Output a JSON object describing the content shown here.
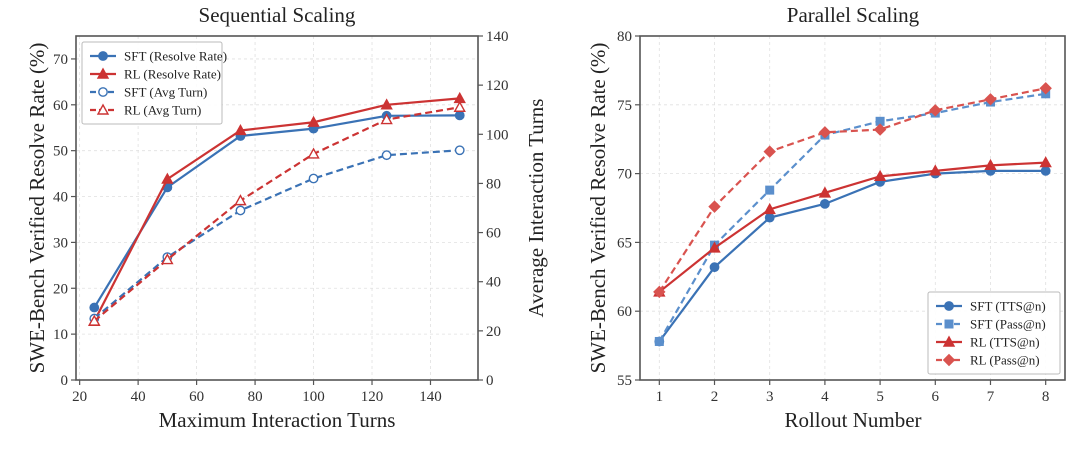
{
  "chart_data": [
    {
      "type": "line",
      "title": "Sequential Scaling",
      "xlabel": "Maximum Interaction Turns",
      "ylabel": "SWE-Bench Verified Resolve Rate (%)",
      "ylabel_right": "Average Interaction Turns",
      "x": [
        25,
        50,
        75,
        100,
        125,
        150
      ],
      "xlim": [
        18.75,
        156.25
      ],
      "ylim": [
        0,
        75
      ],
      "ylim_right": [
        0,
        140
      ],
      "xticks": [
        "20",
        "40",
        "60",
        "80",
        "100",
        "120",
        "140"
      ],
      "xtick_values": [
        20,
        40,
        60,
        80,
        100,
        120,
        140
      ],
      "yticks": [
        "0",
        "10",
        "20",
        "30",
        "40",
        "50",
        "60",
        "70"
      ],
      "ytick_values": [
        0,
        10,
        20,
        30,
        40,
        50,
        60,
        70
      ],
      "yticks_right": [
        "0",
        "20",
        "40",
        "60",
        "80",
        "100",
        "120",
        "140"
      ],
      "ytick_values_right": [
        0,
        20,
        40,
        60,
        80,
        100,
        120,
        140
      ],
      "grid": true,
      "legend_position": "top-left",
      "series": [
        {
          "name": "SFT (Resolve Rate)",
          "axis": "left",
          "color": "#3a72b5",
          "style": "solid",
          "marker": "circle-filled",
          "values": [
            15.8,
            42.0,
            53.2,
            54.8,
            57.6,
            57.7
          ]
        },
        {
          "name": "RL (Resolve Rate)",
          "axis": "left",
          "color": "#cc3333",
          "style": "solid",
          "marker": "triangle-filled",
          "values": [
            12.8,
            43.8,
            54.4,
            56.2,
            60.0,
            61.4
          ]
        },
        {
          "name": "SFT (Avg Turn)",
          "axis": "right",
          "color": "#3a72b5",
          "style": "dashed",
          "marker": "circle-open",
          "values": [
            25,
            50,
            69,
            82,
            91.5,
            93.5
          ]
        },
        {
          "name": "RL (Avg Turn)",
          "axis": "right",
          "color": "#cc3333",
          "style": "dashed",
          "marker": "triangle-open",
          "values": [
            24,
            49,
            73,
            92,
            106,
            111
          ]
        }
      ]
    },
    {
      "type": "line",
      "title": "Parallel Scaling",
      "xlabel": "Rollout Number",
      "ylabel": "SWE-Bench Verified Resolve Rate (%)",
      "x": [
        1,
        2,
        3,
        4,
        5,
        6,
        7,
        8
      ],
      "xlim": [
        0.65,
        8.35
      ],
      "ylim": [
        55,
        80
      ],
      "xticks": [
        "1",
        "2",
        "3",
        "4",
        "5",
        "6",
        "7",
        "8"
      ],
      "xtick_values": [
        1,
        2,
        3,
        4,
        5,
        6,
        7,
        8
      ],
      "yticks": [
        "55",
        "60",
        "65",
        "70",
        "75",
        "80"
      ],
      "ytick_values": [
        55,
        60,
        65,
        70,
        75,
        80
      ],
      "grid": true,
      "legend_position": "bottom-right",
      "series": [
        {
          "name": "SFT (TTS@n)",
          "color": "#3a72b5",
          "style": "solid",
          "marker": "circle-filled",
          "values": [
            57.8,
            63.2,
            66.8,
            67.8,
            69.4,
            70.0,
            70.2,
            70.2
          ]
        },
        {
          "name": "SFT (Pass@n)",
          "color": "#5b8fcc",
          "style": "dashed",
          "marker": "square-filled",
          "values": [
            57.8,
            64.8,
            68.8,
            72.8,
            73.8,
            74.4,
            75.2,
            75.8
          ]
        },
        {
          "name": "RL (TTS@n)",
          "color": "#cc3333",
          "style": "solid",
          "marker": "triangle-filled",
          "values": [
            61.4,
            64.6,
            67.4,
            68.6,
            69.8,
            70.2,
            70.6,
            70.8
          ]
        },
        {
          "name": "RL (Pass@n)",
          "color": "#d9534f",
          "style": "dashed",
          "marker": "diamond-filled",
          "values": [
            61.4,
            67.6,
            71.6,
            73.0,
            73.2,
            74.6,
            75.4,
            76.2
          ]
        }
      ]
    }
  ]
}
